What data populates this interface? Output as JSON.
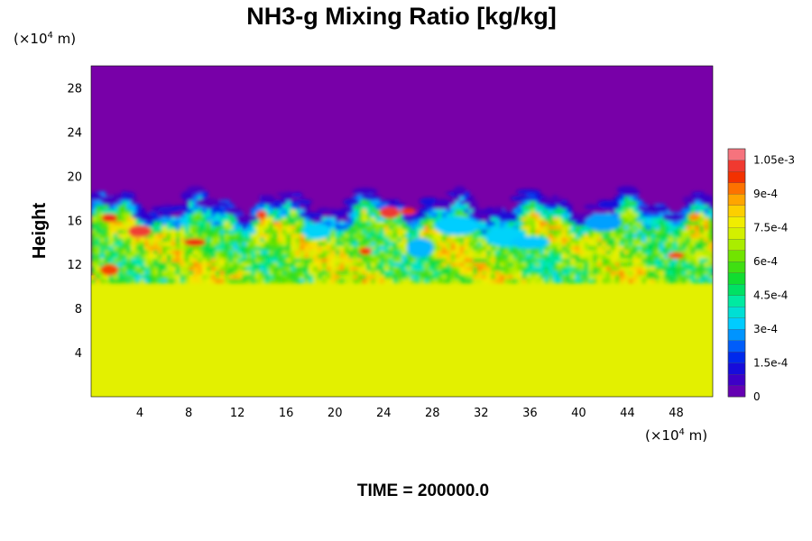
{
  "chart_data": {
    "type": "heatmap",
    "title": "NH3-g Mixing Ratio [kg/kg]",
    "ylabel": "Height",
    "x_unit": {
      "prefix": "(×10",
      "exp": "4",
      "suffix": " m)"
    },
    "y_unit": {
      "prefix": "(×10",
      "exp": "4",
      "suffix": " m)"
    },
    "xlim": [
      0,
      51
    ],
    "ylim": [
      0,
      30
    ],
    "x_ticks": [
      4,
      8,
      12,
      16,
      20,
      24,
      28,
      32,
      36,
      40,
      44,
      48
    ],
    "y_ticks": [
      4,
      8,
      12,
      16,
      20,
      24,
      28
    ],
    "colorbar": {
      "range": [
        0,
        0.0011
      ],
      "ticks": [
        {
          "value": 0,
          "label": "0"
        },
        {
          "value": 0.00015,
          "label": "1.5e-4"
        },
        {
          "value": 0.0003,
          "label": "3e-4"
        },
        {
          "value": 0.00045,
          "label": "4.5e-4"
        },
        {
          "value": 0.0006,
          "label": "6e-4"
        },
        {
          "value": 0.00075,
          "label": "7.5e-4"
        },
        {
          "value": 0.0009,
          "label": "9e-4"
        },
        {
          "value": 0.00105,
          "label": "1.05e-3"
        }
      ]
    },
    "field_summary": {
      "lower_layer_value": 0.00075,
      "lower_layer_top": 11,
      "upper_layer_value": 0,
      "mixing_layer_top": 18,
      "grid": false
    },
    "footer": "TIME = 200000.0"
  }
}
